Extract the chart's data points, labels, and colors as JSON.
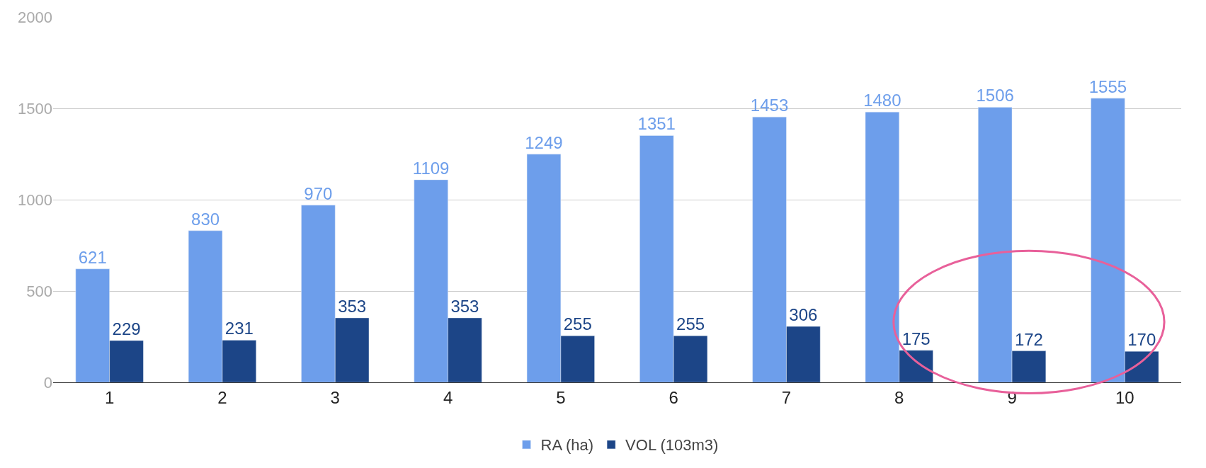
{
  "chart_data": {
    "type": "bar",
    "categories": [
      "1",
      "2",
      "3",
      "4",
      "5",
      "6",
      "7",
      "8",
      "9",
      "10"
    ],
    "series": [
      {
        "name": "RA (ha)",
        "color": "#6d9eeb",
        "values": [
          621,
          830,
          970,
          1109,
          1249,
          1351,
          1453,
          1480,
          1506,
          1555
        ]
      },
      {
        "name": "VOL (103m3)",
        "color": "#1c4587",
        "values": [
          229,
          231,
          353,
          353,
          255,
          255,
          306,
          175,
          172,
          170
        ]
      }
    ],
    "ylim": [
      0,
      2000
    ],
    "yticks": [
      0,
      500,
      1000,
      1500,
      2000
    ],
    "grid": "y",
    "legend": "bottom",
    "data_labels": true
  }
}
